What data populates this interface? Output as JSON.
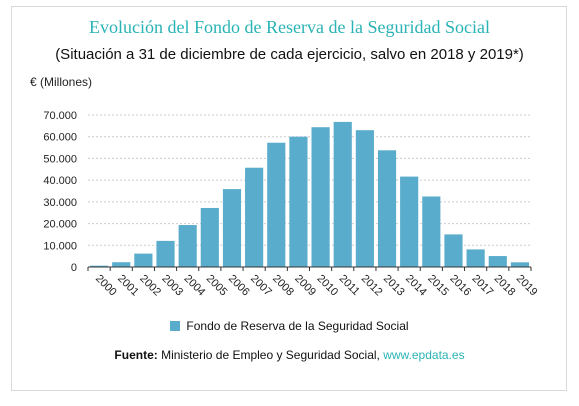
{
  "chart_data": {
    "type": "bar",
    "title": "Evolución del Fondo de Reserva de la Seguridad Social",
    "subtitle": "(Situación a 31 de diciembre de cada ejercicio, salvo en 2018 y 2019*)",
    "ylabel": "€ (Millones)",
    "xlabel": "",
    "categories": [
      "2000",
      "2001",
      "2002",
      "2003",
      "2004",
      "2005",
      "2006",
      "2007",
      "2008",
      "2009",
      "2010",
      "2011",
      "2012",
      "2013",
      "2014",
      "2015",
      "2016",
      "2017",
      "2018",
      "2019"
    ],
    "series": [
      {
        "name": "Fondo de Reserva de la Seguridad Social",
        "values": [
          601,
          2198,
          6168,
          12025,
          19330,
          27185,
          35879,
          45715,
          57223,
          60022,
          64375,
          66815,
          63008,
          53744,
          41634,
          32481,
          15015,
          8095,
          5043,
          2153
        ]
      }
    ],
    "yticks": [
      "0",
      "10.000",
      "20.000",
      "30.000",
      "40.000",
      "50.000",
      "60.000",
      "70.000"
    ],
    "ytick_values": [
      0,
      10000,
      20000,
      30000,
      40000,
      50000,
      60000,
      70000
    ],
    "ylim": [
      0,
      70000
    ],
    "grid": true,
    "legend_position": "bottom",
    "colors": {
      "bar": "#5aaccc",
      "title": "#2ab3b5",
      "grid": "#cccccc"
    }
  },
  "source": {
    "label": "Fuente:",
    "text": " Ministerio de Empleo y Seguridad Social, ",
    "link": "www.epdata.es"
  }
}
